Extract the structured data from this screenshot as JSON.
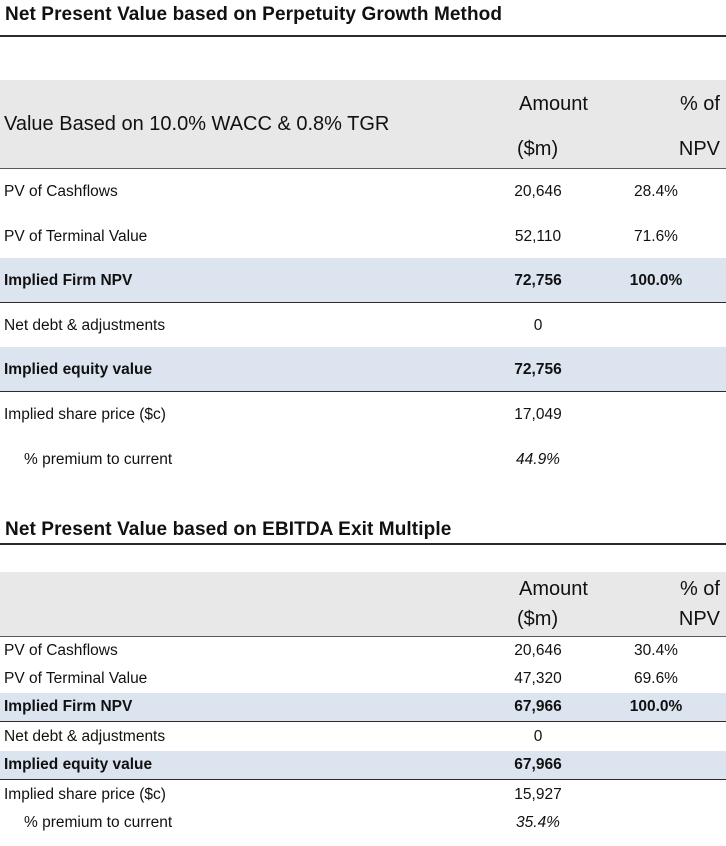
{
  "section1": {
    "title": "Net Present Value based on Perpetuity Growth Method",
    "header": {
      "label": "Value Based on 10.0% WACC & 0.8% TGR",
      "amount_line1": "Amount",
      "amount_line2": "($m)",
      "pct_line1": "% of",
      "pct_line2": "NPV"
    },
    "rows": [
      {
        "label": "PV of Cashflows",
        "amount": "20,646",
        "pct": "28.4%"
      },
      {
        "label": "PV of Terminal Value",
        "amount": "52,110",
        "pct": "71.6%"
      },
      {
        "label": "Implied Firm NPV",
        "amount": "72,756",
        "pct": "100.0%"
      },
      {
        "label": "Net debt & adjustments",
        "amount": "0",
        "pct": ""
      },
      {
        "label": "Implied equity value",
        "amount": "72,756",
        "pct": ""
      },
      {
        "label": "Implied share price ($c)",
        "amount": "17,049",
        "pct": ""
      },
      {
        "label": "% premium to current",
        "amount": "44.9%",
        "pct": ""
      }
    ]
  },
  "section2": {
    "title": "Net Present Value based on EBITDA Exit Multiple",
    "header": {
      "label": "",
      "amount_line1": "Amount",
      "amount_line2": "($m)",
      "pct_line1": "% of",
      "pct_line2": "NPV"
    },
    "rows": [
      {
        "label": "PV of Cashflows",
        "amount": "20,646",
        "pct": "30.4%"
      },
      {
        "label": "PV of Terminal Value",
        "amount": "47,320",
        "pct": "69.6%"
      },
      {
        "label": "Implied Firm NPV",
        "amount": "67,966",
        "pct": "100.0%"
      },
      {
        "label": "Net debt & adjustments",
        "amount": "0",
        "pct": ""
      },
      {
        "label": "Implied equity value",
        "amount": "67,966",
        "pct": ""
      },
      {
        "label": "Implied share price ($c)",
        "amount": "15,927",
        "pct": ""
      },
      {
        "label": "% premium to current",
        "amount": "35.4%",
        "pct": ""
      }
    ]
  }
}
